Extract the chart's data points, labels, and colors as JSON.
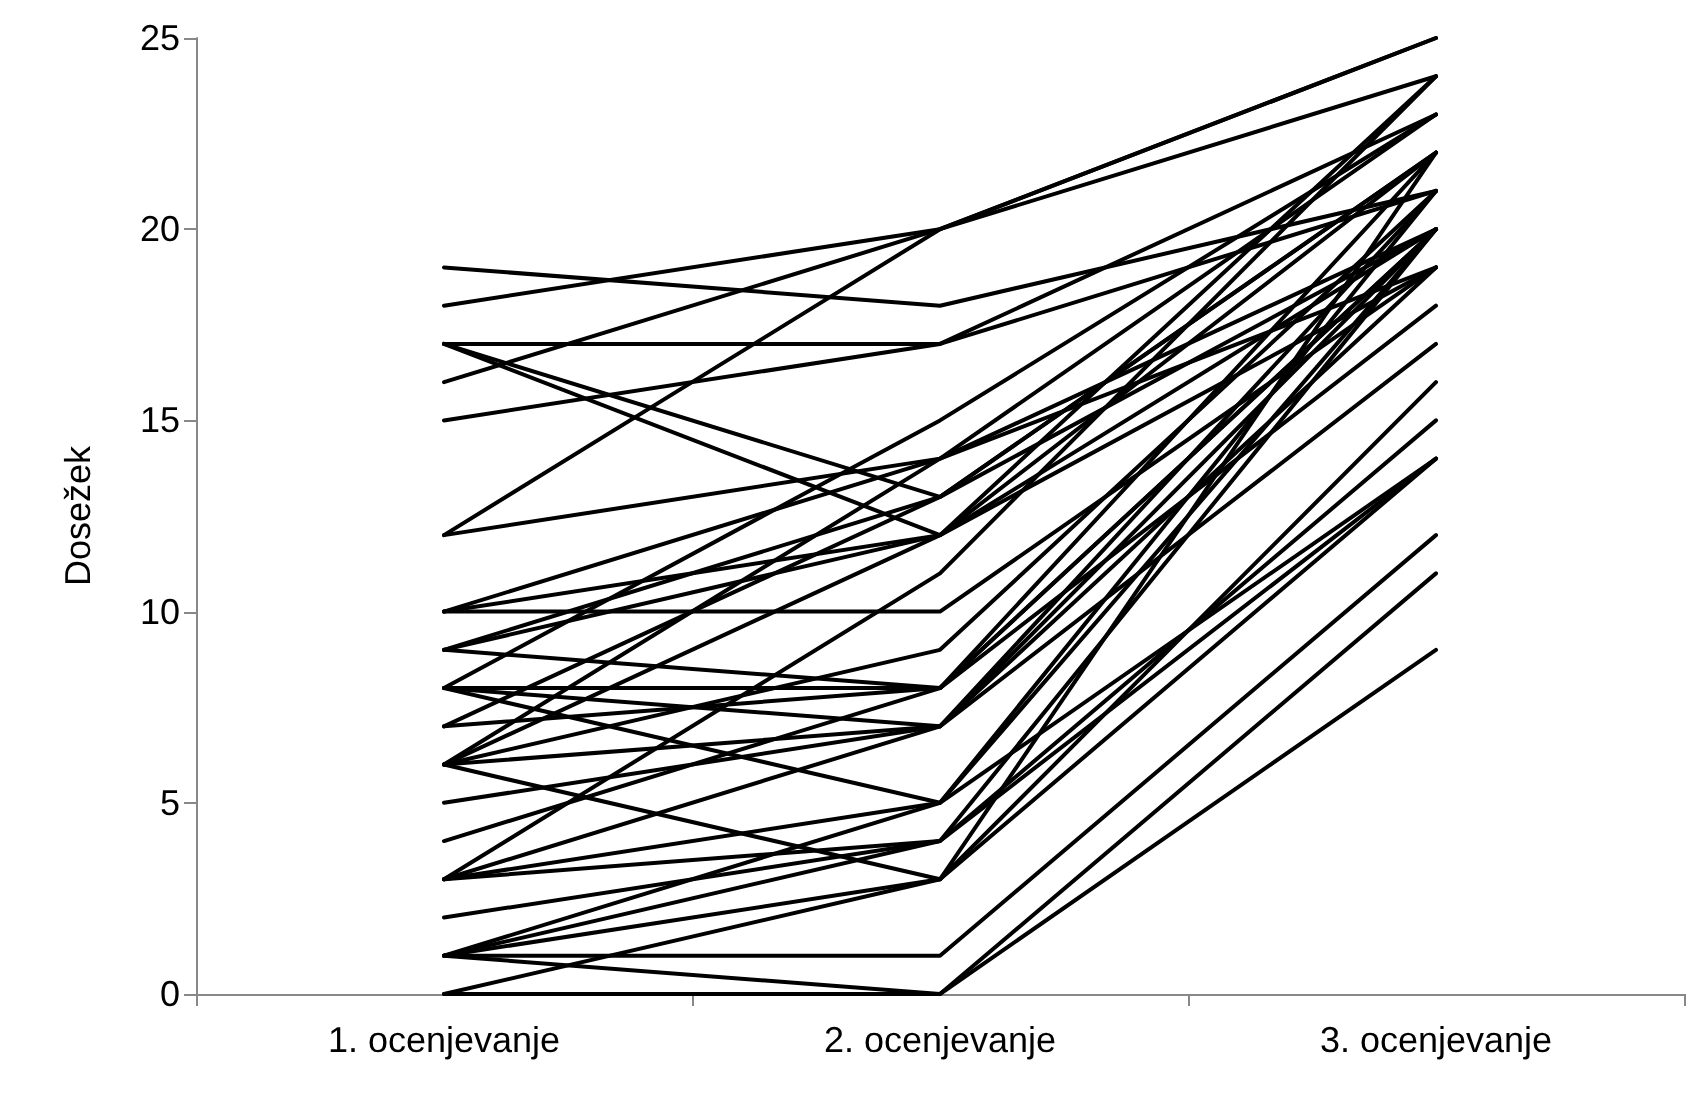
{
  "chart_data": {
    "type": "line",
    "ylabel": "Dosežek",
    "categories": [
      "1. ocenjevanje",
      "2. ocenjevanje",
      "3. ocenjevanje"
    ],
    "ylim": [
      0,
      25
    ],
    "yticks": [
      0,
      5,
      10,
      15,
      20,
      25
    ],
    "grid": false,
    "marker": "none",
    "line_style": "solid",
    "series": [
      {
        "color": "#000000",
        "values": [
          19,
          18,
          21
        ]
      },
      {
        "color": "#000000",
        "values": [
          18,
          20,
          25
        ]
      },
      {
        "color": "#000000",
        "values": [
          17,
          17,
          23
        ]
      },
      {
        "color": "#000000",
        "values": [
          17,
          12,
          20
        ]
      },
      {
        "color": "#000000",
        "values": [
          17,
          13,
          22
        ]
      },
      {
        "color": "#000000",
        "values": [
          16,
          20,
          24
        ]
      },
      {
        "color": "#000000",
        "values": [
          15,
          17,
          21
        ]
      },
      {
        "color": "#000000",
        "values": [
          12,
          20,
          25
        ]
      },
      {
        "color": "#000000",
        "values": [
          12,
          14,
          19
        ]
      },
      {
        "color": "#000000",
        "values": [
          10,
          10,
          19
        ]
      },
      {
        "color": "#000000",
        "values": [
          10,
          12,
          22
        ]
      },
      {
        "color": "#000000",
        "values": [
          10,
          14,
          20
        ]
      },
      {
        "color": "#000000",
        "values": [
          9,
          13,
          20
        ]
      },
      {
        "color": "#000000",
        "values": [
          9,
          12,
          24
        ]
      },
      {
        "color": "#000000",
        "values": [
          9,
          8,
          18
        ]
      },
      {
        "color": "#000000",
        "values": [
          8,
          15,
          23
        ]
      },
      {
        "color": "#000000",
        "values": [
          8,
          8,
          22
        ]
      },
      {
        "color": "#000000",
        "values": [
          8,
          7,
          21
        ]
      },
      {
        "color": "#000000",
        "values": [
          8,
          5,
          14
        ]
      },
      {
        "color": "#000000",
        "values": [
          7,
          8,
          20
        ]
      },
      {
        "color": "#000000",
        "values": [
          7,
          13,
          22
        ]
      },
      {
        "color": "#000000",
        "values": [
          6,
          7,
          20
        ]
      },
      {
        "color": "#000000",
        "values": [
          6,
          14,
          23
        ]
      },
      {
        "color": "#000000",
        "values": [
          6,
          3,
          16
        ]
      },
      {
        "color": "#000000",
        "values": [
          6,
          9,
          21
        ]
      },
      {
        "color": "#000000",
        "values": [
          6,
          12,
          19
        ]
      },
      {
        "color": "#000000",
        "values": [
          5,
          7,
          17
        ]
      },
      {
        "color": "#000000",
        "values": [
          4,
          8,
          20
        ]
      },
      {
        "color": "#000000",
        "values": [
          3,
          7,
          19
        ]
      },
      {
        "color": "#000000",
        "values": [
          3,
          4,
          15
        ]
      },
      {
        "color": "#000000",
        "values": [
          3,
          11,
          24
        ]
      },
      {
        "color": "#000000",
        "values": [
          2,
          4,
          14
        ]
      },
      {
        "color": "#000000",
        "values": [
          1,
          1,
          12
        ]
      },
      {
        "color": "#000000",
        "values": [
          1,
          0,
          11
        ]
      },
      {
        "color": "#000000",
        "values": [
          1,
          5,
          20
        ]
      },
      {
        "color": "#000000",
        "values": [
          1,
          3,
          14
        ]
      },
      {
        "color": "#000000",
        "values": [
          0,
          0,
          9
        ]
      },
      {
        "color": "#000000",
        "values": [
          0,
          3,
          22
        ]
      },
      {
        "color": "#000000",
        "values": [
          1,
          4,
          20
        ]
      },
      {
        "color": "#000000",
        "values": [
          3,
          5,
          21
        ]
      }
    ]
  }
}
